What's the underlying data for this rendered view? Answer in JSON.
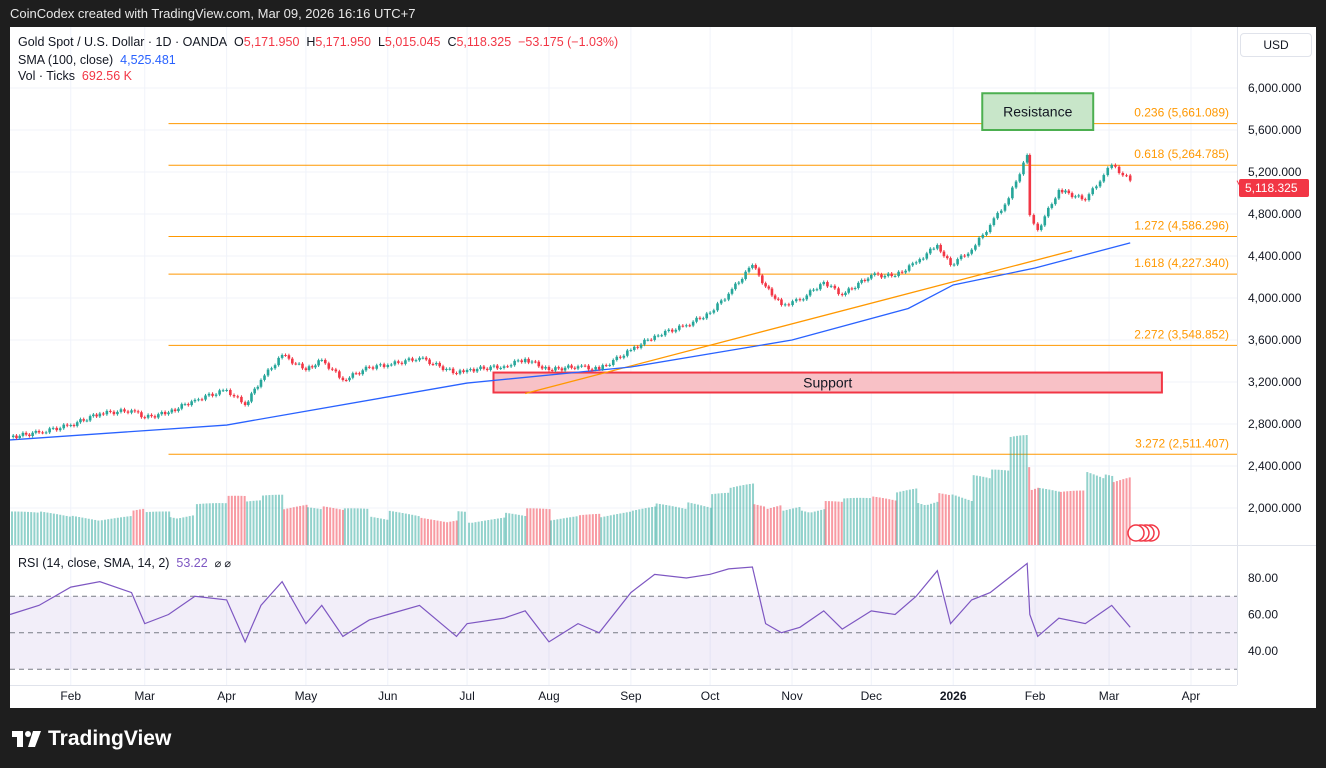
{
  "header": {
    "attribution": "CoinCodex created with TradingView.com, Mar 09, 2026 16:16 UTC+7"
  },
  "legend": {
    "symbol": "Gold Spot / U.S. Dollar · 1D · OANDA",
    "o_label": "O",
    "o": "5,171.950",
    "h_label": "H",
    "h": "5,171.950",
    "l_label": "L",
    "l": "5,015.045",
    "c_label": "C",
    "c": "5,118.325",
    "change": "−53.175 (−1.03%)",
    "sma_label": "SMA (100, close)",
    "sma_value": "4,525.481",
    "vol_label": "Vol · Ticks",
    "vol_value": "692.56 K",
    "rsi_label": "RSI (14, close, SMA, 14, 2)",
    "rsi_value": "53.22",
    "rsi_icons": "⌀ ⌀"
  },
  "currency_button": "USD",
  "branding": {
    "logo_text": "TradingView"
  },
  "colors": {
    "up": "#26a69a",
    "down": "#f23645",
    "sma": "#2962ff",
    "fib": "#ff9800",
    "rsi": "#7e57c2",
    "resistance": "#4caf50",
    "support": "#f23645"
  },
  "chart_data": [
    {
      "type": "candlestick",
      "title": "Gold Spot / U.S. Dollar · 1D · OANDA",
      "ylim": [
        1600,
        6300
      ],
      "y_ticks": [
        "6,000.000",
        "5,600.000",
        "5,200.000",
        "4,800.000",
        "4,400.000",
        "4,000.000",
        "3,600.000",
        "3,200.000",
        "2,800.000",
        "2,400.000",
        "2,000.000"
      ],
      "y_tick_values": [
        6000,
        5600,
        5200,
        4800,
        4400,
        4000,
        3600,
        3200,
        2800,
        2400,
        2000
      ],
      "x_ticks": [
        "Feb",
        "Mar",
        "Apr",
        "May",
        "Jun",
        "Jul",
        "Aug",
        "Sep",
        "Oct",
        "Nov",
        "Dec",
        "2026",
        "Feb",
        "Mar",
        "Apr"
      ],
      "x_tick_dates": [
        "2025-02-01",
        "2025-03-01",
        "2025-04-01",
        "2025-05-01",
        "2025-06-01",
        "2025-07-01",
        "2025-08-01",
        "2025-09-01",
        "2025-10-01",
        "2025-11-01",
        "2025-12-01",
        "2026-01-01",
        "2026-02-01",
        "2026-03-01",
        "2026-04-01"
      ],
      "last_price_label": "5,118.325",
      "closes": [
        [
          "2025-01-09",
          2676
        ],
        [
          "2025-01-20",
          2720
        ],
        [
          "2025-02-01",
          2790
        ],
        [
          "2025-02-12",
          2900
        ],
        [
          "2025-02-24",
          2930
        ],
        [
          "2025-03-01",
          2860
        ],
        [
          "2025-03-10",
          2910
        ],
        [
          "2025-03-20",
          3030
        ],
        [
          "2025-04-01",
          3124
        ],
        [
          "2025-04-08",
          2981
        ],
        [
          "2025-04-14",
          3220
        ],
        [
          "2025-04-22",
          3457
        ],
        [
          "2025-05-01",
          3314
        ],
        [
          "2025-05-07",
          3410
        ],
        [
          "2025-05-15",
          3219
        ],
        [
          "2025-05-25",
          3340
        ],
        [
          "2025-06-01",
          3362
        ],
        [
          "2025-06-13",
          3430
        ],
        [
          "2025-06-27",
          3280
        ],
        [
          "2025-07-01",
          3314
        ],
        [
          "2025-07-15",
          3350
        ],
        [
          "2025-07-23",
          3420
        ],
        [
          "2025-08-01",
          3314
        ],
        [
          "2025-08-12",
          3350
        ],
        [
          "2025-08-20",
          3320
        ],
        [
          "2025-09-01",
          3505
        ],
        [
          "2025-09-10",
          3640
        ],
        [
          "2025-09-22",
          3740
        ],
        [
          "2025-10-01",
          3860
        ],
        [
          "2025-10-08",
          4040
        ],
        [
          "2025-10-17",
          4314
        ],
        [
          "2025-10-22",
          4110
        ],
        [
          "2025-10-28",
          3933
        ],
        [
          "2025-11-04",
          3981
        ],
        [
          "2025-11-13",
          4152
        ],
        [
          "2025-11-20",
          4029
        ],
        [
          "2025-12-01",
          4219
        ],
        [
          "2025-12-10",
          4210
        ],
        [
          "2025-12-18",
          4340
        ],
        [
          "2025-12-26",
          4505
        ],
        [
          "2025-12-31",
          4314
        ],
        [
          "2026-01-08",
          4460
        ],
        [
          "2026-01-15",
          4695
        ],
        [
          "2026-01-22",
          4950
        ],
        [
          "2026-01-29",
          5362
        ],
        [
          "2026-01-30",
          4790
        ],
        [
          "2026-02-02",
          4648
        ],
        [
          "2026-02-10",
          5029
        ],
        [
          "2026-02-20",
          4933
        ],
        [
          "2026-02-27",
          5171
        ],
        [
          "2026-03-02",
          5267
        ],
        [
          "2026-03-09",
          5118
        ]
      ],
      "volume_k": [
        300,
        320,
        350,
        330,
        300,
        380,
        320,
        360,
        400,
        470,
        430,
        480,
        420,
        380,
        400,
        350,
        330,
        360,
        310,
        330,
        300,
        340,
        350,
        310,
        300,
        360,
        400,
        420,
        460,
        500,
        600,
        450,
        480,
        430,
        440,
        420,
        450,
        480,
        560,
        540,
        520,
        600,
        680,
        720,
        1050,
        800,
        650,
        560,
        520,
        780,
        700,
        692.56
      ],
      "sma": {
        "name": "SMA (100, close)",
        "points": [
          [
            "2025-01-09",
            2648
          ],
          [
            "2025-04-01",
            2790
          ],
          [
            "2025-07-01",
            3190
          ],
          [
            "2025-09-01",
            3343
          ],
          [
            "2025-11-01",
            3600
          ],
          [
            "2025-12-15",
            3900
          ],
          [
            "2026-01-01",
            4124
          ],
          [
            "2026-02-01",
            4286
          ],
          [
            "2026-03-09",
            4525
          ]
        ]
      },
      "fib_levels": [
        {
          "label": "0.236 (5,661.089)",
          "value": 5661.089
        },
        {
          "label": "0.618 (5,264.785)",
          "value": 5264.785
        },
        {
          "label": "1.272 (4,586.296)",
          "value": 4586.296
        },
        {
          "label": "1.618 (4,227.340)",
          "value": 4227.34
        },
        {
          "label": "2.272 (3,548.852)",
          "value": 3548.852
        },
        {
          "label": "3.272 (2,511.407)",
          "value": 2511.407
        }
      ],
      "fib_start_date": "2025-03-10",
      "resistance_zone": {
        "label": "Resistance",
        "from": "2026-01-12",
        "to": "2026-02-23",
        "low": 5600,
        "high": 5950
      },
      "support_zone": {
        "label": "Support",
        "from": "2025-07-11",
        "to": "2026-03-21",
        "low": 3100,
        "high": 3290
      },
      "trendline": [
        [
          "2025-07-23",
          3090
        ],
        [
          "2026-02-15",
          4450
        ]
      ]
    },
    {
      "type": "line",
      "title": "RSI (14, close, SMA, 14, 2)",
      "ylim": [
        20,
        95
      ],
      "y_ticks": [
        "80.00",
        "60.00",
        "40.00"
      ],
      "y_tick_values": [
        80,
        60,
        40
      ],
      "bands": [
        30,
        50,
        70
      ],
      "values": [
        [
          "2025-01-09",
          60
        ],
        [
          "2025-01-20",
          65
        ],
        [
          "2025-02-01",
          75
        ],
        [
          "2025-02-12",
          78
        ],
        [
          "2025-02-24",
          72
        ],
        [
          "2025-03-01",
          55
        ],
        [
          "2025-03-10",
          60
        ],
        [
          "2025-03-20",
          70
        ],
        [
          "2025-04-01",
          68
        ],
        [
          "2025-04-08",
          45
        ],
        [
          "2025-04-14",
          65
        ],
        [
          "2025-04-22",
          78
        ],
        [
          "2025-05-01",
          55
        ],
        [
          "2025-05-07",
          65
        ],
        [
          "2025-05-15",
          48
        ],
        [
          "2025-05-25",
          57
        ],
        [
          "2025-06-01",
          60
        ],
        [
          "2025-06-13",
          65
        ],
        [
          "2025-06-27",
          48
        ],
        [
          "2025-07-01",
          55
        ],
        [
          "2025-07-15",
          58
        ],
        [
          "2025-07-23",
          62
        ],
        [
          "2025-08-01",
          45
        ],
        [
          "2025-08-12",
          55
        ],
        [
          "2025-08-20",
          50
        ],
        [
          "2025-09-01",
          72
        ],
        [
          "2025-09-10",
          82
        ],
        [
          "2025-09-22",
          80
        ],
        [
          "2025-10-01",
          82
        ],
        [
          "2025-10-08",
          85
        ],
        [
          "2025-10-17",
          86
        ],
        [
          "2025-10-22",
          55
        ],
        [
          "2025-10-28",
          50
        ],
        [
          "2025-11-04",
          53
        ],
        [
          "2025-11-13",
          62
        ],
        [
          "2025-11-20",
          52
        ],
        [
          "2025-12-01",
          62
        ],
        [
          "2025-12-10",
          60
        ],
        [
          "2025-12-18",
          70
        ],
        [
          "2025-12-26",
          84
        ],
        [
          "2025-12-31",
          55
        ],
        [
          "2026-01-08",
          68
        ],
        [
          "2026-01-15",
          72
        ],
        [
          "2026-01-22",
          80
        ],
        [
          "2026-01-29",
          88
        ],
        [
          "2026-01-30",
          60
        ],
        [
          "2026-02-02",
          48
        ],
        [
          "2026-02-10",
          58
        ],
        [
          "2026-02-20",
          55
        ],
        [
          "2026-02-27",
          62
        ],
        [
          "2026-03-02",
          65
        ],
        [
          "2026-03-09",
          53
        ]
      ]
    }
  ]
}
